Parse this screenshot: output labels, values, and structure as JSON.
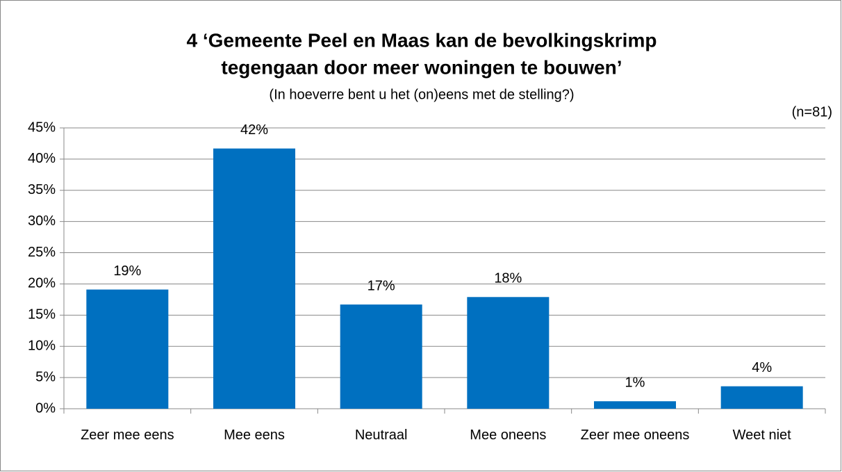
{
  "chart_data": {
    "type": "bar",
    "title": [
      "4 ‘Gemeente Peel en Maas kan de bevolkingskrimp",
      "tegengaan door meer woningen te bouwen’"
    ],
    "subtitle": "(In hoeverre bent u het (on)eens met de stelling?)",
    "annotation": "(n=81)",
    "categories": [
      "Zeer mee eens",
      "Mee eens",
      "Neutraal",
      "Mee oneens",
      "Zeer mee oneens",
      "Weet niet"
    ],
    "values": [
      19.1,
      41.7,
      16.7,
      17.9,
      1.2,
      3.6
    ],
    "value_labels": [
      "19%",
      "42%",
      "17%",
      "18%",
      "1%",
      "4%"
    ],
    "color": "#0070c0",
    "ylim": [
      0,
      45
    ],
    "yticks": [
      {
        "value": 0,
        "label": "0%"
      },
      {
        "value": 5,
        "label": "5%"
      },
      {
        "value": 10,
        "label": "10%"
      },
      {
        "value": 15,
        "label": "15%"
      },
      {
        "value": 20,
        "label": "20%"
      },
      {
        "value": 25,
        "label": "25%"
      },
      {
        "value": 30,
        "label": "30%"
      },
      {
        "value": 35,
        "label": "35%"
      },
      {
        "value": 40,
        "label": "40%"
      },
      {
        "value": 45,
        "label": "45%"
      }
    ],
    "grid": true
  }
}
